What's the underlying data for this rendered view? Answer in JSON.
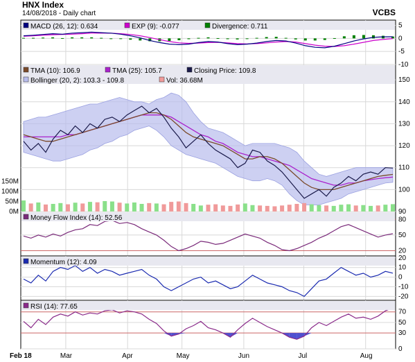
{
  "header": {
    "title": "HNX Index",
    "subtitle": "14/08/2018 - Daily chart",
    "brand": "VCBS"
  },
  "colors": {
    "panel_bg": "#ffffff",
    "legend_bg": "#e8e8f0",
    "grid": "#d8d8d8",
    "macd": "#000080",
    "exp": "#cc00cc",
    "divergence": "#008000",
    "tma10": "#7a4a2a",
    "tma25": "#aa22cc",
    "close": "#1a1a4a",
    "bollinger": "#b8bcec",
    "vol_up": "#8ae08a",
    "vol_down": "#f09a9a",
    "mfi": "#7a2a7a",
    "momentum": "#1a2ab0",
    "rsi": "#8a2a8a",
    "oversold": "#5050d0",
    "ref_line": "#cc6666"
  },
  "chart_data": [
    {
      "type": "bar",
      "name_label": "MACD panel",
      "legend": [
        {
          "text": "MACD (26, 12): 0.634",
          "color": "#000080"
        },
        {
          "text": "EXP (9): -0.077",
          "color": "#cc00cc"
        },
        {
          "text": "Divergence: 0.711",
          "color": "#008000"
        }
      ],
      "yticks": [
        5,
        0,
        -5,
        -10
      ],
      "ylim": [
        -10,
        7
      ],
      "macd": [
        1,
        1.2,
        1.5,
        1.8,
        1.6,
        2.0,
        2.2,
        2.4,
        2.2,
        2.0,
        1.6,
        1.0,
        0.2,
        -0.8,
        -1.6,
        -2.2,
        -2.4,
        -2.2,
        -1.6,
        -1.2,
        -1.4,
        -2.0,
        -2.4,
        -2.2,
        -1.8,
        -1.2,
        -0.8,
        -1.0,
        -1.8,
        -2.8,
        -3.4,
        -3.6,
        -3.0,
        -2.0,
        -1.0,
        -0.2,
        0.4,
        0.6,
        0.634
      ],
      "exp": [
        0.8,
        1.0,
        1.2,
        1.4,
        1.5,
        1.6,
        1.8,
        2.0,
        2.0,
        2.0,
        1.8,
        1.5,
        1.0,
        0.3,
        -0.5,
        -1.2,
        -1.7,
        -1.9,
        -1.8,
        -1.6,
        -1.5,
        -1.7,
        -2.0,
        -2.1,
        -2.0,
        -1.7,
        -1.4,
        -1.2,
        -1.4,
        -2.0,
        -2.6,
        -3.0,
        -3.1,
        -2.8,
        -2.2,
        -1.5,
        -0.8,
        -0.4,
        -0.077
      ]
    },
    {
      "type": "line",
      "name_label": "Price panel",
      "legend": [
        {
          "text": "TMA (10): 106.9",
          "color": "#7a4a2a"
        },
        {
          "text": "TMA (25): 105.7",
          "color": "#aa22cc"
        },
        {
          "text": "Closing Price: 109.8",
          "color": "#1a1a4a"
        },
        {
          "text": "Bollinger (20, 2): 103.3 - 109.8",
          "color": "#b8bcec"
        },
        {
          "text": "Vol: 36.68M",
          "color": "#f09a9a"
        }
      ],
      "yticks": [
        90,
        100,
        110,
        120,
        130,
        140,
        150
      ],
      "ylim": [
        90,
        157
      ],
      "vol_ticks": [
        "150M",
        "100M",
        "50M",
        "0M"
      ],
      "vol_lim": [
        0,
        190
      ],
      "close": [
        122,
        118,
        121,
        117,
        123,
        127,
        125,
        129,
        126,
        130,
        128,
        132,
        133,
        131,
        134,
        136,
        138,
        135,
        137,
        133,
        128,
        124,
        119,
        122,
        125,
        121,
        118,
        116,
        114,
        110,
        112,
        118,
        117,
        113,
        111,
        108,
        104,
        100,
        96,
        98,
        100,
        97,
        101,
        103,
        106,
        104,
        107,
        108,
        107,
        110,
        109.8
      ],
      "tma10": [
        125,
        124,
        123,
        122,
        122,
        123,
        124,
        125,
        126,
        127,
        128,
        129,
        130,
        131,
        132,
        133,
        134,
        135,
        135,
        134,
        132,
        129,
        126,
        124,
        123,
        122,
        121,
        120,
        118,
        116,
        114,
        114,
        115,
        115,
        114,
        112,
        109,
        106,
        103,
        101,
        100,
        100,
        100,
        101,
        102,
        103,
        104,
        105,
        106,
        106.5,
        106.9
      ],
      "tma25": [
        124,
        124,
        124,
        124,
        124,
        124,
        125,
        125,
        126,
        127,
        128,
        129,
        130,
        131,
        132,
        133,
        134,
        134,
        134,
        134,
        133,
        131,
        129,
        127,
        125,
        124,
        122,
        121,
        119,
        117,
        116,
        115,
        115,
        114,
        113,
        112,
        111,
        109,
        107,
        105,
        104,
        103,
        102,
        102,
        103,
        103,
        104,
        104.5,
        105,
        105.4,
        105.7
      ],
      "boll_upper": [
        131,
        132,
        133,
        133,
        134,
        135,
        136,
        137,
        138,
        139,
        139,
        140,
        141,
        142,
        141,
        140,
        140,
        139,
        141,
        142,
        144,
        143,
        140,
        135,
        131,
        128,
        127,
        126,
        124,
        122,
        120,
        121,
        121,
        121,
        121,
        120,
        119,
        117,
        113,
        110,
        107,
        106,
        107,
        108,
        109,
        110,
        110,
        110,
        110,
        110,
        109.8
      ],
      "boll_lower": [
        117,
        116,
        115,
        114,
        113,
        113,
        114,
        115,
        116,
        118,
        119,
        121,
        122,
        124,
        125,
        127,
        128,
        129,
        127,
        124,
        120,
        118,
        116,
        115,
        114,
        113,
        112,
        110,
        108,
        106,
        105,
        104,
        104,
        105,
        104,
        102,
        98,
        95,
        93,
        93,
        93,
        94,
        95,
        96,
        98,
        99,
        100,
        101,
        102,
        103,
        103.3
      ],
      "volume": [
        55,
        40,
        45,
        35,
        38,
        42,
        36,
        44,
        40,
        48,
        46,
        52,
        50,
        44,
        40,
        45,
        38,
        42,
        40,
        36,
        48,
        50,
        42,
        38,
        30,
        34,
        36,
        30,
        28,
        35,
        40,
        32,
        30,
        28,
        26,
        30,
        34,
        38,
        42,
        36,
        32,
        30,
        28,
        34,
        36,
        30,
        32,
        28,
        30,
        34,
        36.68
      ],
      "volume_up": [
        1,
        0,
        1,
        0,
        1,
        1,
        0,
        1,
        0,
        1,
        0,
        1,
        1,
        0,
        1,
        1,
        1,
        0,
        1,
        0,
        0,
        0,
        0,
        1,
        1,
        0,
        0,
        0,
        0,
        0,
        1,
        1,
        0,
        0,
        0,
        0,
        0,
        0,
        0,
        1,
        1,
        0,
        1,
        1,
        1,
        0,
        1,
        1,
        0,
        1,
        1
      ]
    },
    {
      "type": "line",
      "name_label": "Money Flow Index panel",
      "legend": [
        {
          "text": "Money Flow Index (14): 52.56",
          "color": "#7a2a7a"
        }
      ],
      "yticks": [
        80,
        50,
        20
      ],
      "ylim": [
        10,
        95
      ],
      "ref_lines": [
        80,
        20
      ],
      "values": [
        48,
        44,
        50,
        46,
        52,
        48,
        55,
        60,
        62,
        70,
        68,
        76,
        78,
        72,
        74,
        70,
        62,
        56,
        50,
        40,
        28,
        20,
        24,
        30,
        38,
        36,
        32,
        34,
        40,
        46,
        52,
        48,
        44,
        36,
        30,
        22,
        20,
        24,
        30,
        36,
        44,
        50,
        58,
        66,
        70,
        64,
        58,
        52,
        46,
        50,
        52.56
      ]
    },
    {
      "type": "line",
      "name_label": "Momentum panel",
      "legend": [
        {
          "text": "Momentum (12): 4.09",
          "color": "#1a2ab0"
        }
      ],
      "yticks": [
        20,
        10,
        0,
        -10,
        -20
      ],
      "ylim": [
        -24,
        22
      ],
      "values": [
        -2,
        -6,
        2,
        -4,
        6,
        10,
        8,
        12,
        6,
        10,
        4,
        8,
        6,
        2,
        4,
        6,
        8,
        2,
        -2,
        -10,
        -14,
        -10,
        -6,
        -2,
        0,
        -6,
        -4,
        -8,
        -12,
        -10,
        -4,
        2,
        -2,
        -6,
        -8,
        -10,
        -14,
        -16,
        -20,
        -12,
        -4,
        -2,
        4,
        10,
        6,
        2,
        4,
        0,
        2,
        6,
        4.09
      ]
    },
    {
      "type": "line",
      "name_label": "RSI panel",
      "legend": [
        {
          "text": "RSI (14): 77.65",
          "color": "#8a2a8a"
        }
      ],
      "yticks": [
        70,
        50,
        30,
        0
      ],
      "ylim": [
        0,
        92
      ],
      "ref_lines": [
        70,
        30
      ],
      "values": [
        52,
        40,
        56,
        46,
        60,
        66,
        62,
        70,
        64,
        68,
        66,
        72,
        74,
        68,
        72,
        70,
        66,
        56,
        48,
        34,
        24,
        28,
        38,
        44,
        52,
        40,
        36,
        30,
        22,
        36,
        48,
        58,
        50,
        42,
        36,
        30,
        22,
        18,
        24,
        40,
        50,
        44,
        52,
        60,
        66,
        58,
        60,
        56,
        62,
        72,
        77.65
      ]
    },
    {
      "type": "line",
      "name_label": "Date axis",
      "x_labels": [
        "Feb 18",
        "Mar",
        "Apr",
        "May",
        "Jun",
        "Jul",
        "Aug"
      ]
    }
  ]
}
